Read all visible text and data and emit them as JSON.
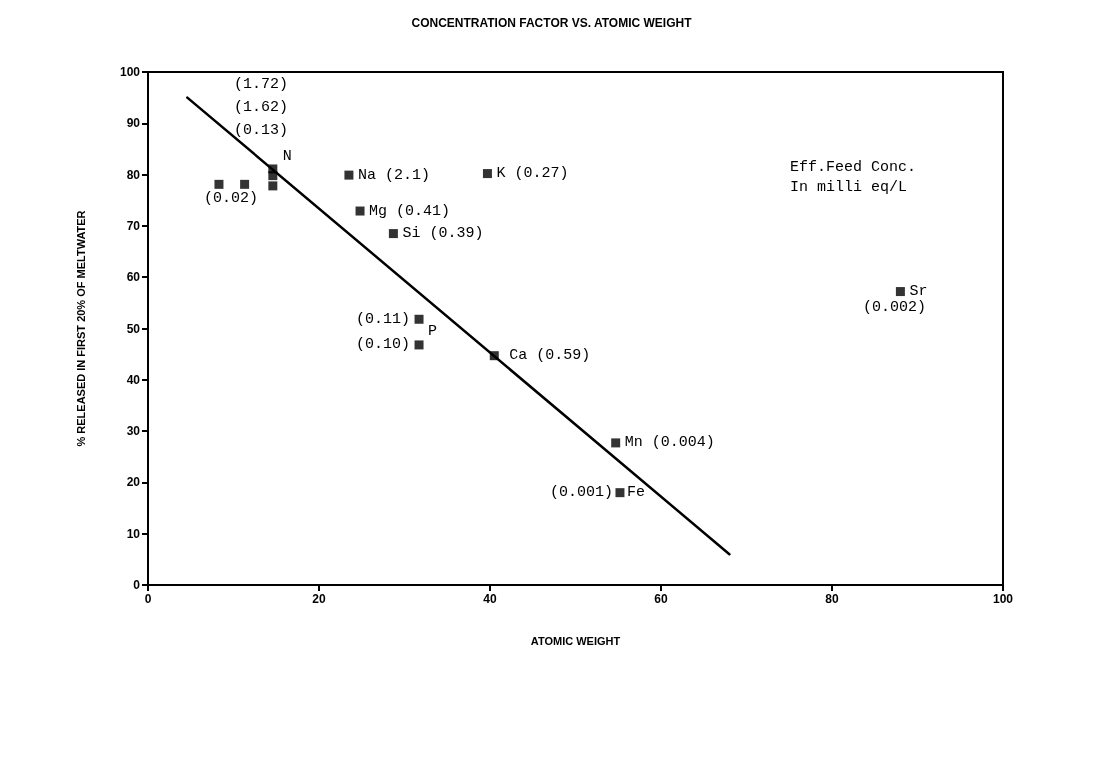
{
  "chart_data": {
    "type": "scatter",
    "title": "CONCENTRATION FACTOR VS. ATOMIC WEIGHT",
    "xlabel": "ATOMIC WEIGHT",
    "ylabel": "% RELEASED IN FIRST 20% OF MELTWATER",
    "xlim": [
      0,
      100
    ],
    "xticks": [
      0,
      20,
      40,
      60,
      80,
      100
    ],
    "ylim": [
      0,
      100
    ],
    "yticks": [
      0,
      10,
      20,
      30,
      40,
      50,
      60,
      70,
      80,
      90,
      100
    ],
    "grid": false,
    "marker": "square",
    "series": [
      {
        "color": "#000000",
        "x": [
          8.3,
          11.3,
          14.6,
          14.6,
          14.6,
          23.5,
          39.7,
          24.8,
          28.7,
          31.7,
          31.7,
          40.5,
          54.7,
          55.2,
          88
        ],
        "values": [
          78.1,
          78.1,
          81.1,
          79.8,
          77.8,
          79.9,
          80.2,
          72.9,
          68.5,
          51.8,
          46.8,
          44.7,
          27.7,
          18,
          57.2
        ]
      },
      {
        "type": "line",
        "color": "#000000",
        "marker": "none",
        "line_style": "solid",
        "x": [
          4.6,
          68
        ],
        "values": [
          95,
          6
        ]
      }
    ],
    "annotations": [
      "(1.72)",
      "(1.62)",
      "(0.13)",
      {
        "text": "N",
        "x": 14.6,
        "y": 81.1
      },
      {
        "text": "(0.02)",
        "x": 8.3,
        "y": 78.1
      },
      {
        "text": "Na (2.1)",
        "x": 23.5,
        "y": 79.9
      },
      {
        "text": "K (0.27)",
        "x": 39.7,
        "y": 80.2
      },
      {
        "text": "Mg (0.41)",
        "x": 24.8,
        "y": 72.9
      },
      {
        "text": "Si (0.39)",
        "x": 28.7,
        "y": 68.5
      },
      {
        "text": "(0.11)",
        "x": 31.7,
        "y": 51.8
      },
      {
        "text": "P",
        "x": 31.7,
        "y": 51.8
      },
      {
        "text": "(0.10)",
        "x": 31.7,
        "y": 46.8
      },
      {
        "text": "Ca (0.59)",
        "x": 40.5,
        "y": 44.7
      },
      {
        "text": "Mn (0.004)",
        "x": 54.7,
        "y": 27.7
      },
      {
        "text": "(0.001)",
        "x": 55.2,
        "y": 18
      },
      {
        "text": "Fe",
        "x": 55.2,
        "y": 18
      },
      {
        "text": "Sr",
        "x": 88,
        "y": 57.2
      },
      {
        "text": "(0.002)",
        "x": 88,
        "y": 57.2
      },
      "Eff.Feed Conc.",
      "In milli eq/L"
    ]
  }
}
